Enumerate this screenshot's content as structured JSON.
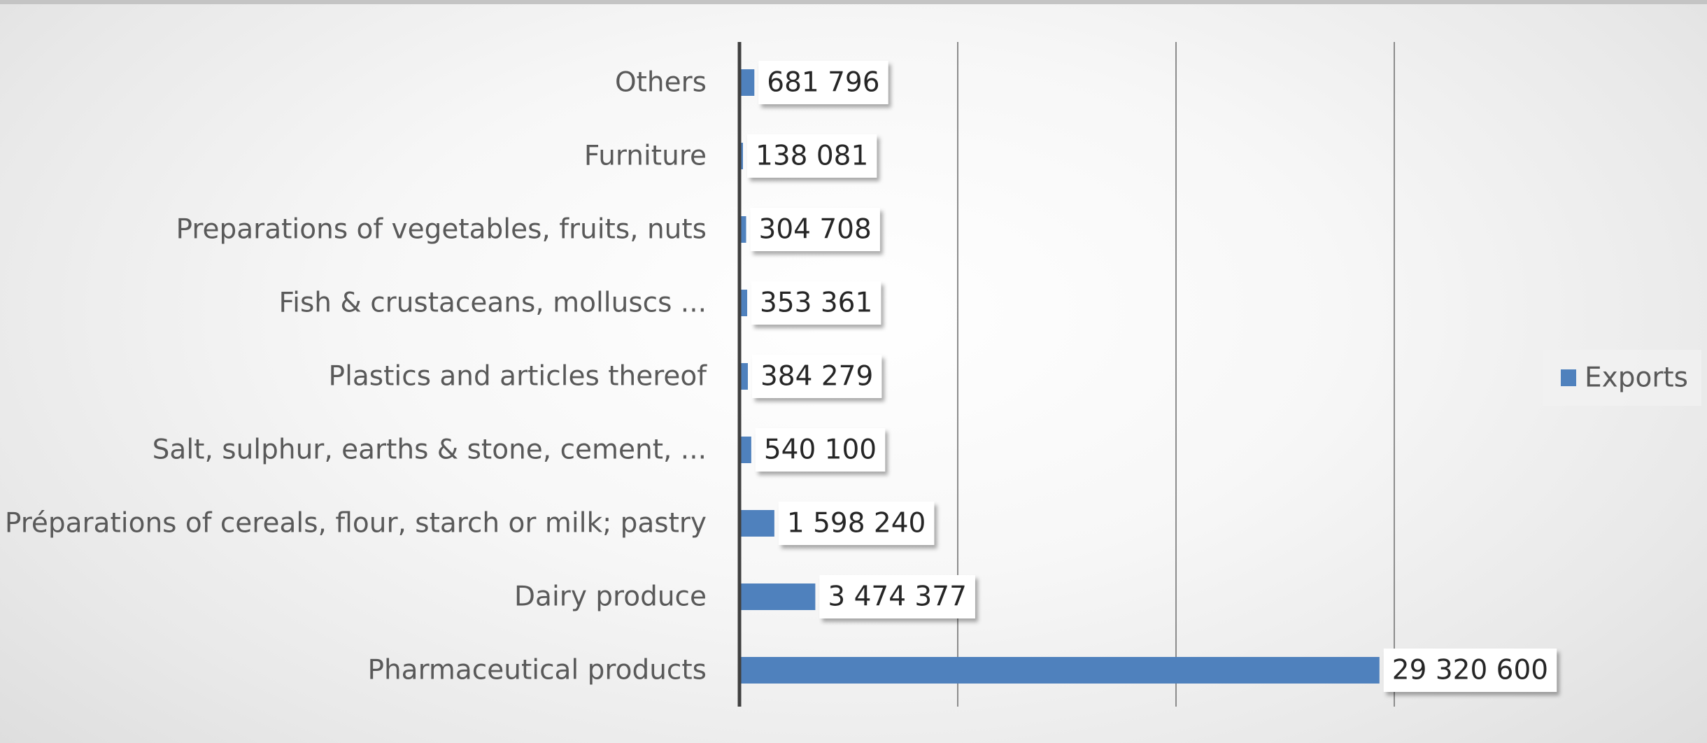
{
  "chart_data": {
    "type": "bar",
    "orientation": "horizontal",
    "categories": [
      "Others",
      "Furniture",
      "Preparations of vegetables, fruits, nuts",
      "Fish & crustaceans, molluscs ...",
      "Plastics and articles thereof",
      "Salt, sulphur, earths & stone, cement, ...",
      "Préparations of cereals, flour, starch or milk; pastry",
      "Dairy produce",
      "Pharmaceutical products"
    ],
    "series": [
      {
        "name": "Exports",
        "color": "#4f81bd",
        "values": [
          681796,
          138081,
          304708,
          353361,
          384279,
          540100,
          1598240,
          3474377,
          29320600
        ],
        "labels": [
          "681 796",
          "138 081",
          "304 708",
          "353 361",
          "384 279",
          "540 100",
          "1 598 240",
          "3 474 377",
          "29 320 600"
        ]
      }
    ],
    "title": "",
    "xlabel": "",
    "ylabel": "",
    "xlim": [
      0,
      40000000
    ],
    "grid": "vertical",
    "legend": "right",
    "data_labels": "boxed"
  }
}
